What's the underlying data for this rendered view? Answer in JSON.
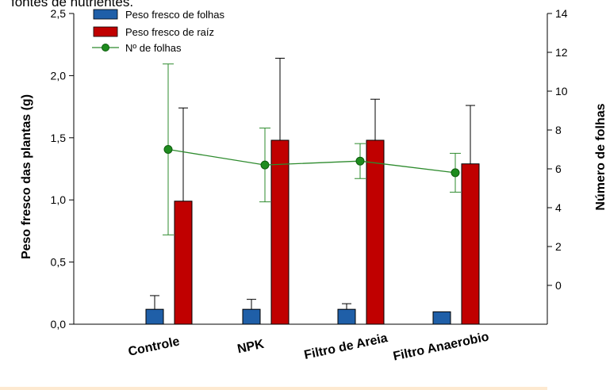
{
  "title_fragment": "fontes de nutrientes.",
  "colors": {
    "leaf_bar": "#1f5fa8",
    "root_bar": "#c00000",
    "line": "#2e8b2e",
    "marker": "#1e8c1e"
  },
  "chart_data": {
    "type": "bar",
    "categories": [
      "Controle",
      "NPK",
      "Filtro de Areia",
      "Filtro Anaerobio"
    ],
    "ylabel": "Peso fresco das plantas (g)",
    "ylim": [
      0,
      2.5
    ],
    "yticks": [
      "0,0",
      "0,5",
      "1,0",
      "1,5",
      "2,0",
      "2,5"
    ],
    "y2label": "Número de folhas",
    "y2lim": [
      -2,
      14
    ],
    "y2ticks": [
      "0",
      "2",
      "4",
      "6",
      "8",
      "10",
      "12",
      "14"
    ],
    "grid": false,
    "legend_position": "top-left",
    "series": [
      {
        "name": "Peso fresco de folhas",
        "kind": "bar",
        "axis": "left",
        "values": [
          0.12,
          0.12,
          0.12,
          0.1
        ],
        "errors": [
          0.11,
          0.08,
          0.045,
          0
        ]
      },
      {
        "name": "Peso fresco de raíz",
        "kind": "bar",
        "axis": "left",
        "values": [
          0.99,
          1.48,
          1.48,
          1.29
        ],
        "errors": [
          0.75,
          0.66,
          0.33,
          0.47
        ]
      },
      {
        "name": "Nº de folhas",
        "kind": "line",
        "axis": "right",
        "values": [
          7.0,
          6.2,
          6.4,
          5.8
        ],
        "errors": [
          4.4,
          1.9,
          0.9,
          1.0
        ]
      }
    ]
  }
}
